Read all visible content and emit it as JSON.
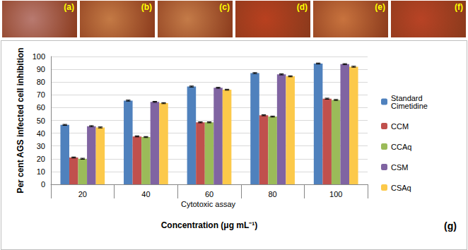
{
  "panels": {
    "labels": [
      "(a)",
      "(b)",
      "(c)",
      "(d)",
      "(e)",
      "(f)"
    ]
  },
  "chart_data": {
    "type": "bar",
    "x_label": "Concentration (μg mL⁻¹)",
    "y_label": "Per cent AGS infected cell inhibition",
    "annotations": [
      "Cytotoxic assay",
      "(g)"
    ],
    "categories": [
      "20",
      "40",
      "60",
      "80",
      "100"
    ],
    "series": [
      {
        "name": "Standard Cimetidine",
        "color": "#4f81bd",
        "values": [
          46.5,
          65.5,
          76.5,
          87,
          94.5
        ],
        "errors": [
          0.4,
          0.4,
          0.4,
          0.4,
          0.4
        ]
      },
      {
        "name": "CCM",
        "color": "#c0504d",
        "values": [
          21,
          37.5,
          48.5,
          54,
          67
        ],
        "errors": [
          0.4,
          0.4,
          0.4,
          0.4,
          0.4
        ]
      },
      {
        "name": "CCAq",
        "color": "#9bbb59",
        "values": [
          20,
          37,
          48.5,
          53,
          66
        ],
        "errors": [
          0.4,
          0.4,
          0.4,
          0.4,
          0.4
        ]
      },
      {
        "name": "CSM",
        "color": "#8064a2",
        "values": [
          45.5,
          64.5,
          75.5,
          86,
          94
        ],
        "errors": [
          0.4,
          0.4,
          0.4,
          0.4,
          0.4
        ]
      },
      {
        "name": "CSAq",
        "color": "#fcc94a",
        "values": [
          44.5,
          63.5,
          74,
          84.5,
          92
        ],
        "errors": [
          0.4,
          0.4,
          0.4,
          0.4,
          0.4
        ]
      }
    ],
    "ylim": [
      0,
      100
    ],
    "yticks": [
      0,
      10,
      20,
      30,
      40,
      50,
      60,
      70,
      80,
      90,
      100
    ],
    "grid": true,
    "legend": "right"
  }
}
